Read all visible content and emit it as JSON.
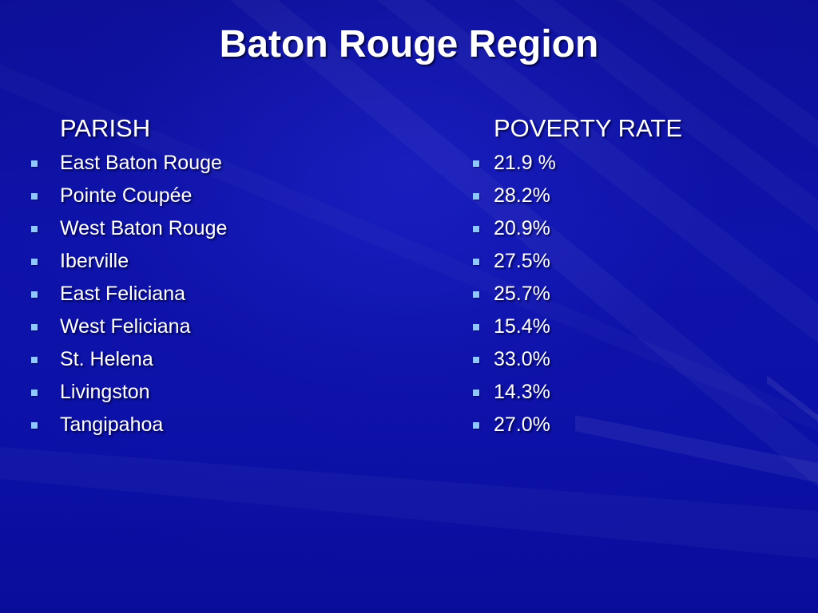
{
  "slide": {
    "title": "Baton Rouge Region",
    "parish_header": "PARISH",
    "poverty_header": "POVERTY RATE",
    "parishes": [
      "East Baton Rouge",
      "Pointe Coupée",
      "West Baton Rouge",
      "Iberville",
      "East Feliciana",
      "West Feliciana",
      "St. Helena",
      "Livingston",
      "Tangipahoa"
    ],
    "poverty_rates": [
      "21.9 %",
      "28.2%",
      "20.9%",
      "27.5%",
      "25.7%",
      "15.4%",
      "33.0%",
      "14.3%",
      "27.0%"
    ]
  },
  "theme": {
    "background": "#0b10a6",
    "text": "#ffffff",
    "bullet": "#8fc7ff"
  },
  "icons": {
    "bullet": "square-bullet-icon"
  }
}
